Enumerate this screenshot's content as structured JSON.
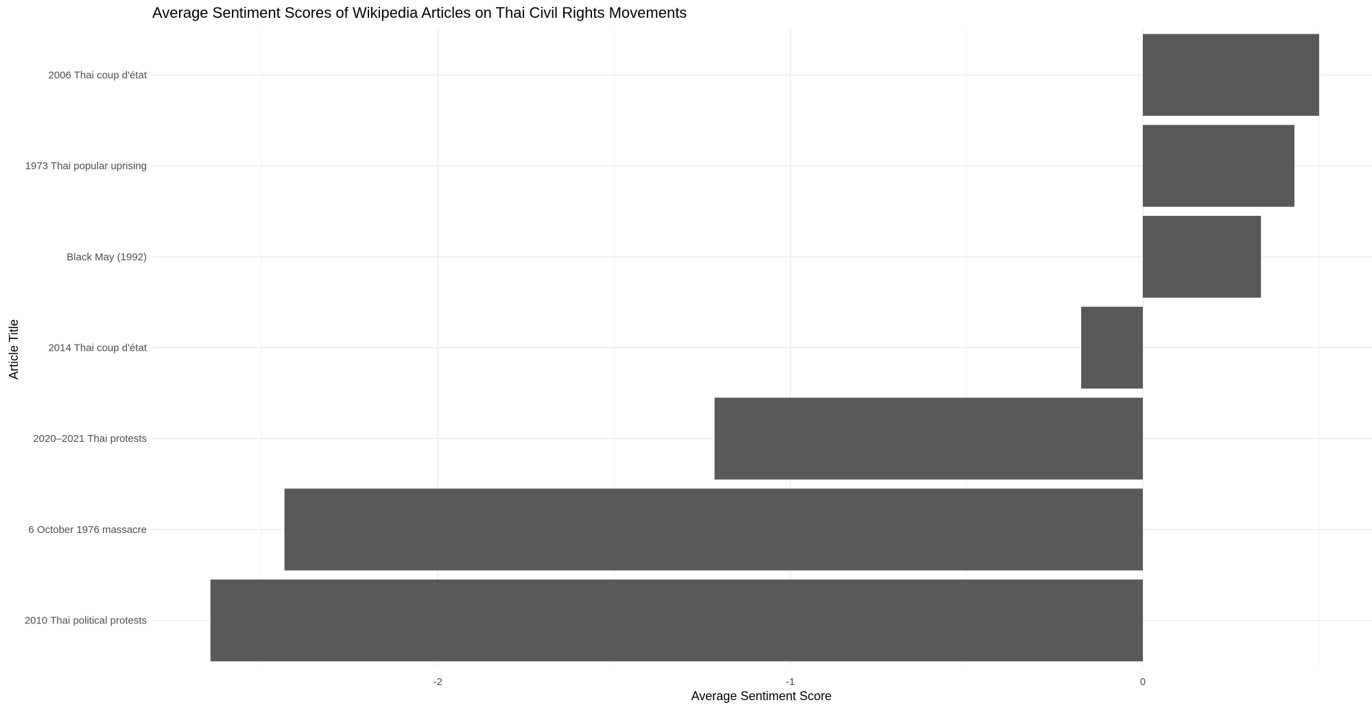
{
  "chart_data": {
    "type": "bar",
    "orientation": "horizontal",
    "title": "Average Sentiment Scores of Wikipedia Articles on Thai Civil Rights Movements",
    "xlabel": "Average Sentiment Score",
    "ylabel": "Article Title",
    "categories": [
      "2006 Thai coup d'état",
      "1973 Thai popular uprising",
      "Black May (1992)",
      "2014 Thai coup d'état",
      "2020–2021 Thai protests",
      "6 October 1976 massacre",
      "2010 Thai political protests"
    ],
    "values": [
      0.5,
      0.43,
      0.335,
      -0.175,
      -1.215,
      -2.435,
      -2.645
    ],
    "xlim": [
      -2.81,
      0.65
    ],
    "xticks": [
      -2,
      -1,
      0
    ],
    "xtick_labels": [
      "-2",
      "-1",
      "0"
    ],
    "grid": true,
    "legend": "none",
    "bar_color": "#595959"
  }
}
